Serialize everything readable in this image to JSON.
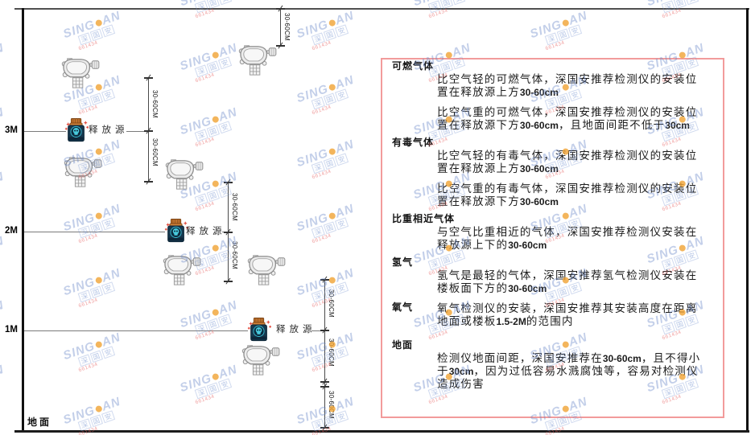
{
  "watermark": {
    "brand_left": "SING",
    "brand_right": "AN",
    "sub_chars": [
      "深",
      "国",
      "安"
    ],
    "code": "661434",
    "dot_color": "#f0a233",
    "text_color": "#6987c8",
    "code_color": "#e65f5f"
  },
  "diagram": {
    "ground_label": "地面",
    "source_label": "释放源",
    "dim_label": "30-60CM",
    "levels": [
      {
        "label": "3M"
      },
      {
        "label": "2M"
      },
      {
        "label": "1M"
      }
    ]
  },
  "panel": {
    "border_color": "#f29b9b",
    "sections": [
      {
        "heading": "可燃气体",
        "paragraphs": [
          "比空气轻的可燃气体，深国安推荐检测仪的安装位置在释放源上方30-60cm",
          "比空气重的可燃气体，深国安推荐检测仪的安装位置在释放源下方30-60cm，且地面间距不低于30cm"
        ]
      },
      {
        "heading": "有毒气体",
        "paragraphs": [
          "比空气轻的有毒气体，深国安推荐检测仪的安装位置在释放源上方30-60cm",
          "比空气重的有毒气体，深国安推荐检测仪的安装位置在释放源下方30-60cm"
        ]
      },
      {
        "heading": "比重相近气体",
        "paragraphs": [
          "与空气比重相近的气体，深国安推荐检测仪安装在释放源上下的30-60cm"
        ]
      },
      {
        "heading": "氢气",
        "paragraphs": [
          "氢气是最轻的气体，深国安推荐氢气检测仪安装在楼板面下方的30-60cm"
        ]
      },
      {
        "heading": "氧气",
        "inline": true,
        "paragraphs": [
          "氧气检测仪的安装，深国安推荐其安装高度在距离地面或楼板1.5-2M的范围内"
        ]
      },
      {
        "heading": "地面",
        "gap": true,
        "paragraphs": [
          "检测仪地面间距，深国安推荐在30-60cm，且不得小于30cm，因为过低容易水溅腐蚀等，容易对检测仪造成伤害"
        ]
      }
    ]
  }
}
